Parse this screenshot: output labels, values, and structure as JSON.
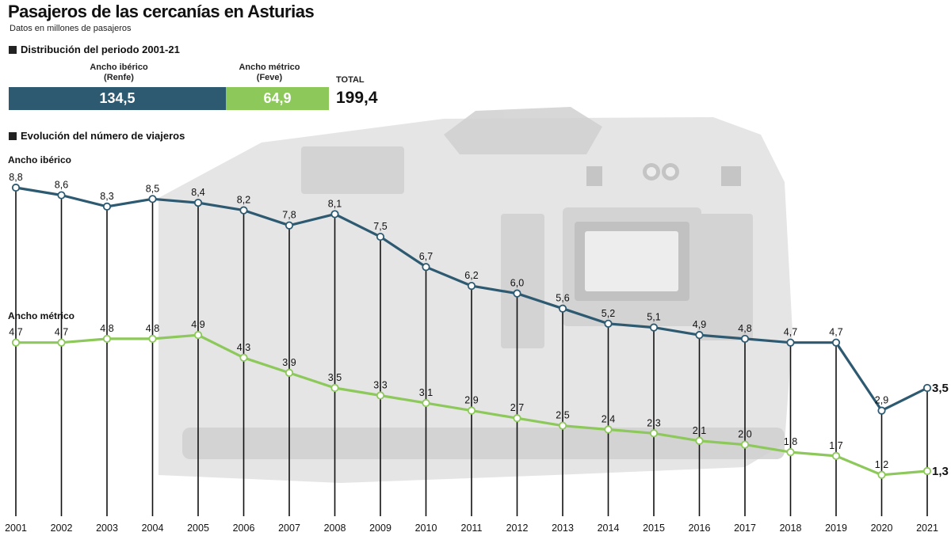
{
  "header": {
    "title": "Pasajeros de las cercanías en Asturias",
    "subtitle": "Datos en millones de pasajeros"
  },
  "distribution": {
    "heading": "Distribución del periodo 2001-21",
    "segments": [
      {
        "name": "Ancho ibérico",
        "paren": "(Renfe)",
        "value": "134,5",
        "color": "#2d5a71"
      },
      {
        "name": "Ancho métrico",
        "paren": "(Feve)",
        "value": "64,9",
        "color": "#8dc85a"
      }
    ],
    "total_label": "TOTAL",
    "total_value": "199,4"
  },
  "evolution": {
    "heading": "Evolución del número de viajeros"
  },
  "colors": {
    "iberico": "#2d5a71",
    "metrico": "#8dc85a",
    "photo": "#d8d8d8"
  },
  "chart_data": {
    "type": "line",
    "categories": [
      "2001",
      "2002",
      "2003",
      "2004",
      "2005",
      "2006",
      "2007",
      "2008",
      "2009",
      "2010",
      "2011",
      "2012",
      "2013",
      "2014",
      "2015",
      "2016",
      "2017",
      "2018",
      "2019",
      "2020",
      "2021"
    ],
    "series": [
      {
        "name": "Ancho ibérico",
        "values": [
          8.8,
          8.6,
          8.3,
          8.5,
          8.4,
          8.2,
          7.8,
          8.1,
          7.5,
          6.7,
          6.2,
          6.0,
          5.6,
          5.2,
          5.1,
          4.9,
          4.8,
          4.7,
          4.7,
          2.9,
          3.5
        ],
        "labels": [
          "8,8",
          "8,6",
          "8,3",
          "8,5",
          "8,4",
          "8,2",
          "7,8",
          "8,1",
          "7,5",
          "6,7",
          "6,2",
          "6,0",
          "5,6",
          "5,2",
          "5,1",
          "4,9",
          "4,8",
          "4,7",
          "4,7",
          "2,9",
          "3,5"
        ]
      },
      {
        "name": "Ancho métrico",
        "values": [
          4.7,
          4.7,
          4.8,
          4.8,
          4.9,
          4.3,
          3.9,
          3.5,
          3.3,
          3.1,
          2.9,
          2.7,
          2.5,
          2.4,
          2.3,
          2.1,
          2.0,
          1.8,
          1.7,
          1.2,
          1.3
        ],
        "labels": [
          "4,7",
          "4,7",
          "4,8",
          "4,8",
          "4,9",
          "4,3",
          "3,9",
          "3,5",
          "3,3",
          "3,1",
          "2,9",
          "2,7",
          "2,5",
          "2,4",
          "2,3",
          "2,1",
          "2,0",
          "1,8",
          "1,7",
          "1,2",
          "1,3"
        ]
      }
    ],
    "grid": "vertical lines per year",
    "legend": "series names printed at line start"
  }
}
